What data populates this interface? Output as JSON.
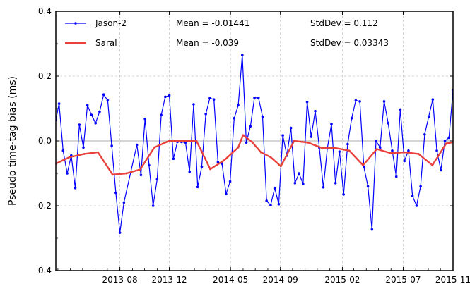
{
  "chart_data": {
    "type": "line",
    "ylabel": "Pseudo time-tag bias (ms)",
    "xlabel": "",
    "title": "",
    "ylim": [
      -0.4,
      0.4
    ],
    "xlim": [
      "2013-02-24",
      "2015-11-01"
    ],
    "grid": true,
    "legend_position": "top-left",
    "y_ticks": [
      "-0.4",
      "-0.2",
      "0.0",
      "0.2",
      "0.4"
    ],
    "x_ticks": [
      {
        "date": "2013-08-01",
        "label": "2013-08"
      },
      {
        "date": "2013-12-01",
        "label": "2013-12"
      },
      {
        "date": "2014-05-01",
        "label": "2014-05"
      },
      {
        "date": "2014-09-01",
        "label": "2014-09"
      },
      {
        "date": "2015-02-01",
        "label": "2015-02"
      },
      {
        "date": "2015-07-01",
        "label": "2015-07"
      },
      {
        "date": "2015-11-01",
        "label": "2015-11"
      }
    ],
    "series": [
      {
        "name": "Jason-2",
        "color": "#0000ff",
        "mean_label": "Mean = -0.01441",
        "std_label": "StdDev = 0.112",
        "points": [
          [
            "2013-02-24",
            0.065
          ],
          [
            "2013-03-04",
            0.115
          ],
          [
            "2013-03-14",
            -0.03
          ],
          [
            "2013-03-24",
            -0.1
          ],
          [
            "2013-04-03",
            -0.045
          ],
          [
            "2013-04-13",
            -0.145
          ],
          [
            "2013-04-23",
            0.05
          ],
          [
            "2013-05-03",
            -0.02
          ],
          [
            "2013-05-13",
            0.11
          ],
          [
            "2013-05-23",
            0.08
          ],
          [
            "2013-06-02",
            0.055
          ],
          [
            "2013-06-12",
            0.09
          ],
          [
            "2013-06-22",
            0.143
          ],
          [
            "2013-07-02",
            0.125
          ],
          [
            "2013-07-12",
            -0.015
          ],
          [
            "2013-07-22",
            -0.16
          ],
          [
            "2013-08-01",
            -0.283
          ],
          [
            "2013-08-11",
            -0.19
          ],
          [
            "2013-09-12",
            -0.012
          ],
          [
            "2013-09-22",
            -0.105
          ],
          [
            "2013-10-02",
            0.068
          ],
          [
            "2013-10-12",
            -0.075
          ],
          [
            "2013-10-22",
            -0.2
          ],
          [
            "2013-11-01",
            -0.118
          ],
          [
            "2013-11-11",
            0.08
          ],
          [
            "2013-11-21",
            0.136
          ],
          [
            "2013-12-01",
            0.14
          ],
          [
            "2013-12-11",
            -0.055
          ],
          [
            "2013-12-21",
            -0.003
          ],
          [
            "2013-12-31",
            -0.003
          ],
          [
            "2014-01-10",
            -0.005
          ],
          [
            "2014-01-20",
            -0.095
          ],
          [
            "2014-01-30",
            0.113
          ],
          [
            "2014-02-09",
            -0.142
          ],
          [
            "2014-02-19",
            -0.08
          ],
          [
            "2014-03-01",
            0.083
          ],
          [
            "2014-03-11",
            0.132
          ],
          [
            "2014-03-21",
            0.128
          ],
          [
            "2014-03-31",
            -0.065
          ],
          [
            "2014-04-10",
            -0.07
          ],
          [
            "2014-04-20",
            -0.163
          ],
          [
            "2014-04-30",
            -0.125
          ],
          [
            "2014-05-10",
            0.07
          ],
          [
            "2014-05-20",
            0.11
          ],
          [
            "2014-05-30",
            0.265
          ],
          [
            "2014-06-09",
            -0.005
          ],
          [
            "2014-06-19",
            0.045
          ],
          [
            "2014-06-29",
            0.133
          ],
          [
            "2014-07-09",
            0.133
          ],
          [
            "2014-07-19",
            0.075
          ],
          [
            "2014-07-29",
            -0.185
          ],
          [
            "2014-08-08",
            -0.198
          ],
          [
            "2014-08-18",
            -0.145
          ],
          [
            "2014-08-28",
            -0.195
          ],
          [
            "2014-09-07",
            0.017
          ],
          [
            "2014-09-17",
            -0.045
          ],
          [
            "2014-09-27",
            0.04
          ],
          [
            "2014-10-07",
            -0.13
          ],
          [
            "2014-10-17",
            -0.1
          ],
          [
            "2014-10-27",
            -0.133
          ],
          [
            "2014-11-06",
            0.12
          ],
          [
            "2014-11-16",
            0.013
          ],
          [
            "2014-11-26",
            0.092
          ],
          [
            "2014-12-06",
            -0.02
          ],
          [
            "2014-12-16",
            -0.143
          ],
          [
            "2014-12-26",
            -0.022
          ],
          [
            "2015-01-05",
            0.052
          ],
          [
            "2015-01-15",
            -0.13
          ],
          [
            "2015-01-25",
            -0.033
          ],
          [
            "2015-02-04",
            -0.165
          ],
          [
            "2015-02-14",
            -0.01
          ],
          [
            "2015-02-24",
            0.07
          ],
          [
            "2015-03-06",
            0.125
          ],
          [
            "2015-03-16",
            0.122
          ],
          [
            "2015-03-26",
            -0.08
          ],
          [
            "2015-04-05",
            -0.14
          ],
          [
            "2015-04-15",
            -0.273
          ],
          [
            "2015-04-25",
            0.0
          ],
          [
            "2015-05-05",
            -0.02
          ],
          [
            "2015-05-15",
            0.122
          ],
          [
            "2015-05-25",
            0.055
          ],
          [
            "2015-06-04",
            -0.03
          ],
          [
            "2015-06-14",
            -0.11
          ],
          [
            "2015-06-24",
            0.097
          ],
          [
            "2015-07-04",
            -0.062
          ],
          [
            "2015-07-14",
            -0.03
          ],
          [
            "2015-07-24",
            -0.17
          ],
          [
            "2015-08-03",
            -0.2
          ],
          [
            "2015-08-13",
            -0.14
          ],
          [
            "2015-08-23",
            0.02
          ],
          [
            "2015-09-02",
            0.075
          ],
          [
            "2015-09-12",
            0.128
          ],
          [
            "2015-09-22",
            -0.03
          ],
          [
            "2015-10-02",
            -0.09
          ],
          [
            "2015-10-12",
            0.0
          ],
          [
            "2015-10-22",
            0.01
          ],
          [
            "2015-11-01",
            0.157
          ],
          [
            "2015-11-11",
            0.005
          ],
          [
            "2015-11-21",
            -0.035
          ]
        ]
      },
      {
        "name": "Saral",
        "color": "#e8403a",
        "mean_label": "Mean = -0.039",
        "std_label": "StdDev = 0.03343",
        "points": [
          [
            "2013-02-24",
            -0.07
          ],
          [
            "2013-03-30",
            -0.05
          ],
          [
            "2013-05-05",
            -0.04
          ],
          [
            "2013-06-08",
            -0.035
          ],
          [
            "2013-07-14",
            -0.104
          ],
          [
            "2013-08-17",
            -0.1
          ],
          [
            "2013-09-20",
            -0.088
          ],
          [
            "2013-10-25",
            -0.02
          ],
          [
            "2013-11-30",
            0.0
          ],
          [
            "2014-01-02",
            0.0
          ],
          [
            "2014-02-06",
            0.0
          ],
          [
            "2014-03-12",
            -0.087
          ],
          [
            "2014-04-15",
            -0.06
          ],
          [
            "2014-05-20",
            -0.02
          ],
          [
            "2014-06-01",
            0.018
          ],
          [
            "2014-06-23",
            -0.003
          ],
          [
            "2014-07-15",
            -0.035
          ],
          [
            "2014-08-08",
            -0.05
          ],
          [
            "2014-09-02",
            -0.078
          ],
          [
            "2014-10-05",
            0.0
          ],
          [
            "2014-11-08",
            -0.005
          ],
          [
            "2014-12-13",
            -0.022
          ],
          [
            "2015-01-15",
            -0.022
          ],
          [
            "2015-02-18",
            -0.03
          ],
          [
            "2015-03-24",
            -0.075
          ],
          [
            "2015-04-27",
            -0.025
          ],
          [
            "2015-06-01",
            -0.038
          ],
          [
            "2015-07-04",
            -0.035
          ],
          [
            "2015-08-08",
            -0.04
          ],
          [
            "2015-09-11",
            -0.075
          ],
          [
            "2015-10-15",
            -0.008
          ],
          [
            "2015-11-17",
            0.0
          ]
        ]
      }
    ]
  }
}
